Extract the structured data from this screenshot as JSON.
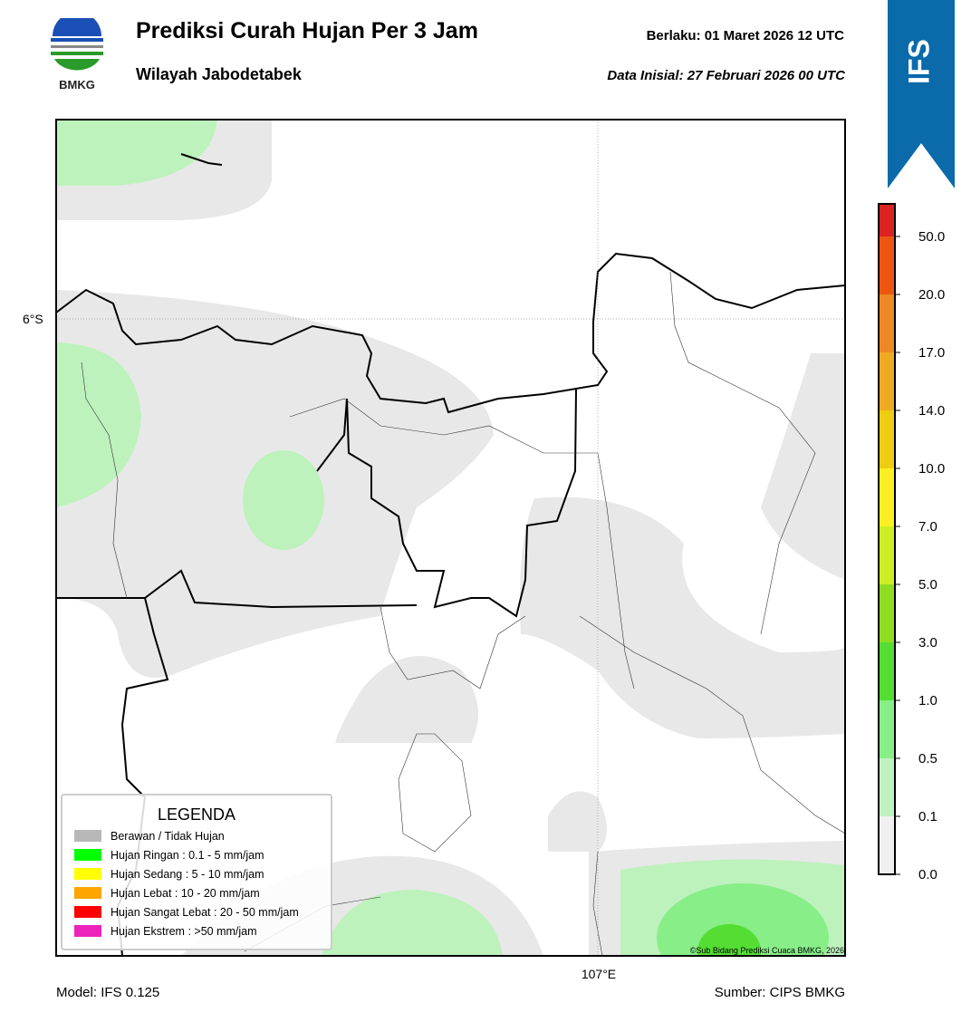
{
  "header": {
    "logo_text": "BMKG",
    "title": "Prediksi Curah Hujan Per 3 Jam",
    "subtitle": "Wilayah Jabodetabek",
    "valid": "Berlaku:  01 Maret 2026 12 UTC",
    "init": "Data Inisial:  27 Februari 2026 00 UTC"
  },
  "badge": "IFS",
  "map": {
    "lat_label": "6°S",
    "lon_label": "107°E",
    "credit": "©Sub Bidang Prediksi Cuaca BMKG, 2026"
  },
  "legend": {
    "title": "LEGENDA",
    "items": [
      "Berawan / Tidak Hujan",
      "Hujan Ringan : 0.1 - 5 mm/jam",
      "Hujan Sedang : 5 - 10 mm/jam",
      "Hujan Lebat : 10 - 20 mm/jam",
      "Hujan Sangat Lebat : 20 - 50 mm/jam",
      "Hujan Ekstrem : >50 mm/jam"
    ]
  },
  "colorbar": {
    "labels": [
      "0.0",
      "0.1",
      "0.5",
      "1.0",
      "3.0",
      "5.0",
      "7.0",
      "10.0",
      "14.0",
      "17.0",
      "20.0",
      "50.0"
    ]
  },
  "footer": {
    "model": "Model: IFS 0.125",
    "source": "Sumber: CIPS BMKG"
  }
}
